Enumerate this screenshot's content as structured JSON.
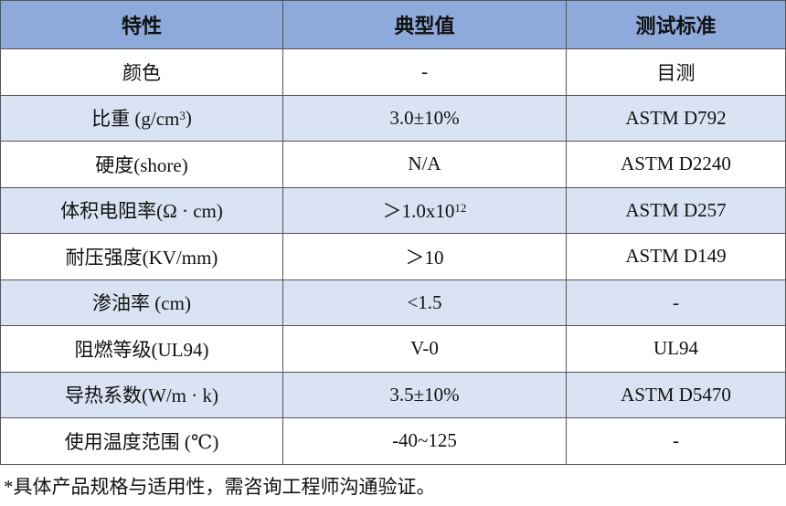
{
  "table": {
    "header": [
      "特性",
      "典型值",
      "测试标准"
    ],
    "rows": [
      [
        "颜色",
        "-",
        "目测"
      ],
      [
        {
          "text": "比重 (g/cm",
          "sup": "3",
          "tail": ")"
        },
        "3.0±10%",
        "ASTM D792"
      ],
      [
        "硬度(shore)",
        "N/A",
        "ASTM D2240"
      ],
      [
        "体积电阻率(Ω · cm)",
        {
          "text": "＞1.0x10",
          "sup": "12"
        },
        "ASTM D257"
      ],
      [
        "耐压强度(KV/mm)",
        "＞10",
        "ASTM D149"
      ],
      [
        "渗油率 (cm)",
        "<1.5",
        "-"
      ],
      [
        "阻燃等级(UL94)",
        "V-0",
        "UL94"
      ],
      [
        "导热系数(W/m · k)",
        "3.5±10%",
        "ASTM D5470"
      ],
      [
        "使用温度范围 (℃)",
        "-40~125",
        "-"
      ]
    ]
  },
  "footnote": "*具体产品规格与适用性，需咨询工程师沟通验证。"
}
